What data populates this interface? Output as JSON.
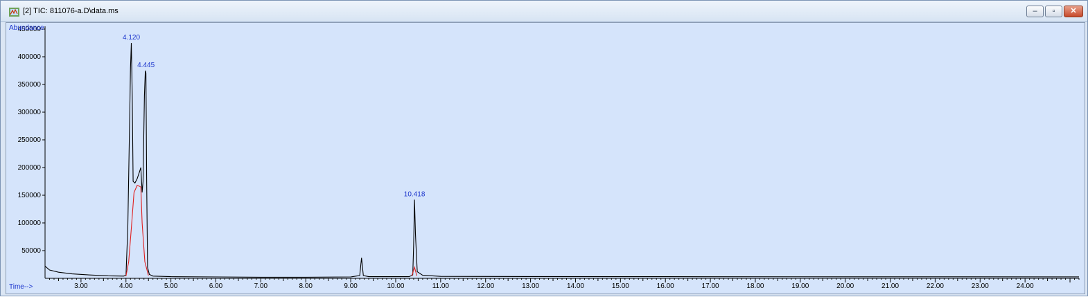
{
  "window": {
    "title": "[2] TIC: 811076-a.D\\data.ms",
    "controls": [
      "minimize",
      "restore",
      "close"
    ]
  },
  "chart_data": {
    "type": "line",
    "ylabel": "Abundance",
    "xlabel": "Time-->",
    "xlim": [
      2.2,
      25.2
    ],
    "ylim": [
      0,
      455000
    ],
    "xticks": [
      3.0,
      4.0,
      5.0,
      6.0,
      7.0,
      8.0,
      9.0,
      10.0,
      11.0,
      12.0,
      13.0,
      14.0,
      15.0,
      16.0,
      17.0,
      18.0,
      19.0,
      20.0,
      21.0,
      22.0,
      23.0,
      24.0
    ],
    "xtick_labels": [
      "3.00",
      "4.00",
      "5.00",
      "6.00",
      "7.00",
      "8.00",
      "9.00",
      "10.00",
      "11.00",
      "12.00",
      "13.00",
      "14.00",
      "15.00",
      "16.00",
      "17.00",
      "18.00",
      "19.00",
      "20.00",
      "21.00",
      "22.00",
      "23.00",
      "24.00"
    ],
    "yticks": [
      50000,
      100000,
      150000,
      200000,
      250000,
      300000,
      350000,
      400000,
      450000
    ],
    "ytick_labels": [
      "50000",
      "100000",
      "150000",
      "200000",
      "250000",
      "300000",
      "350000",
      "400000",
      "450000"
    ],
    "grid": false,
    "colors": {
      "trace": "#000000",
      "integration": "#e02020",
      "annotation": "#1a33cc",
      "background": "#d5e4fb"
    },
    "series": [
      {
        "x": [
          2.2,
          2.3,
          2.5,
          2.8,
          3.2,
          3.6,
          3.95,
          4.0,
          4.04,
          4.08,
          4.1,
          4.12,
          4.14,
          4.16,
          4.2,
          4.25,
          4.3,
          4.33,
          4.36,
          4.38,
          4.41,
          4.43,
          4.445,
          4.46,
          4.48,
          4.52,
          4.6,
          5.0,
          6.0,
          7.0,
          8.0,
          9.0,
          9.2,
          9.24,
          9.28,
          9.4,
          10.3,
          10.38,
          10.4,
          10.418,
          10.44,
          10.48,
          10.6,
          11.0,
          13.0,
          16.0,
          20.0,
          25.2
        ],
        "values": [
          22000,
          15000,
          11000,
          8000,
          6000,
          4500,
          4000,
          5500,
          90000,
          280000,
          380000,
          425000,
          330000,
          175000,
          172000,
          180000,
          192000,
          200000,
          155000,
          175000,
          330000,
          375000,
          370000,
          180000,
          20000,
          7000,
          4000,
          3000,
          2500,
          2000,
          2000,
          2500,
          5000,
          37000,
          5000,
          3000,
          3000,
          6000,
          60000,
          142000,
          80000,
          12000,
          5500,
          3500,
          3200,
          3000,
          2800,
          2600
        ]
      }
    ],
    "integration_baselines": [
      {
        "x": [
          4.0,
          4.06,
          4.12,
          4.18,
          4.25,
          4.33
        ],
        "values": [
          4000,
          30000,
          90000,
          155000,
          168000,
          165000
        ]
      },
      {
        "x": [
          4.33,
          4.36,
          4.42,
          4.5
        ],
        "values": [
          165000,
          100000,
          30000,
          5000
        ]
      },
      {
        "x": [
          10.36,
          10.418,
          10.47
        ],
        "values": [
          4000,
          20000,
          4500
        ]
      }
    ],
    "annotations": [
      {
        "x": 4.12,
        "y": 425000,
        "text": "4.120"
      },
      {
        "x": 4.445,
        "y": 375000,
        "text": "4.445"
      },
      {
        "x": 10.418,
        "y": 142000,
        "text": "10.418"
      }
    ]
  }
}
